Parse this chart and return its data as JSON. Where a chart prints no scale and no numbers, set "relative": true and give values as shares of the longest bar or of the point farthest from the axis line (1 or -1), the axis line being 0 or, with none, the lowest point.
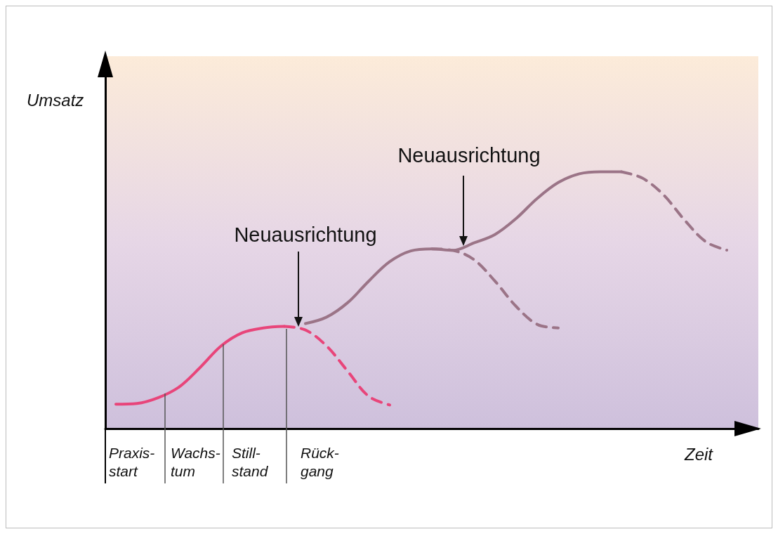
{
  "chart_data": {
    "type": "line",
    "relative": true,
    "xlabel": "Zeit",
    "ylabel": "Umsatz",
    "grid": false,
    "marker": "none",
    "categories": [
      null,
      null,
      null,
      null,
      null,
      null,
      null,
      null,
      null,
      null,
      null,
      null,
      null,
      null,
      null,
      null,
      null,
      null,
      null,
      null,
      null,
      null,
      null,
      null,
      null,
      null,
      null,
      null,
      null,
      null,
      null
    ],
    "annotations": [
      "Neuausrichtung",
      "Neuausrichtung",
      "Praxis-start",
      "Wachs-tum",
      "Still-stand",
      "Rück-gang"
    ],
    "series": [
      {
        "color": "#e8457a",
        "line_style": "solid",
        "values": [
          0.095,
          0.098,
          0.12,
          0.162,
          0.238,
          0.322,
          0.373,
          0.392,
          0.398,
          null,
          null,
          null,
          null,
          null,
          null,
          null,
          null,
          null,
          null,
          null,
          null,
          null,
          null,
          null,
          null,
          null,
          null,
          null,
          null,
          null,
          null
        ]
      },
      {
        "color": "#e8457a",
        "line_style": "dashed",
        "values": [
          null,
          null,
          null,
          null,
          null,
          null,
          null,
          null,
          0.398,
          0.384,
          0.322,
          0.224,
          0.126,
          0.092,
          null,
          null,
          null,
          null,
          null,
          null,
          null,
          null,
          null,
          null,
          null,
          null,
          null,
          null,
          null,
          null,
          null
        ]
      },
      {
        "color": "#9b7487",
        "line_style": "solid",
        "values": [
          null,
          null,
          null,
          null,
          null,
          null,
          null,
          null,
          null,
          0.409,
          0.434,
          0.49,
          0.574,
          0.65,
          0.692,
          0.7,
          0.694,
          0.723,
          0.756,
          0.818,
          0.896,
          0.958,
          0.992,
          1,
          1,
          null,
          null,
          null,
          null,
          null,
          null
        ]
      },
      {
        "color": "#9b7487",
        "line_style": "dashed",
        "values": [
          null,
          null,
          null,
          null,
          null,
          null,
          null,
          null,
          null,
          null,
          null,
          null,
          null,
          null,
          null,
          0.7,
          0.694,
          0.658,
          0.574,
          0.476,
          0.406,
          0.392,
          null,
          null,
          null,
          null,
          null,
          null,
          null,
          null,
          null
        ]
      },
      {
        "color": "#9b7487",
        "line_style": "dashed",
        "values": [
          null,
          null,
          null,
          null,
          null,
          null,
          null,
          null,
          null,
          null,
          null,
          null,
          null,
          null,
          null,
          null,
          null,
          null,
          null,
          null,
          null,
          null,
          null,
          null,
          1,
          0.975,
          0.91,
          0.812,
          0.728,
          0.695,
          null
        ]
      }
    ]
  }
}
